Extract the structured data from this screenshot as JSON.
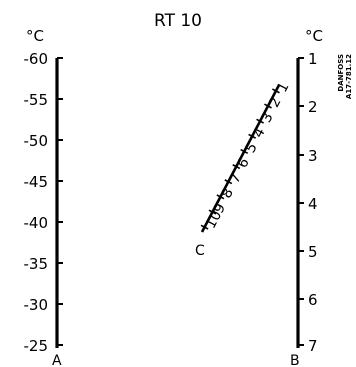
{
  "title": "RT 10",
  "brand": {
    "line1": "DANFOSS",
    "line2": "A17-781.12"
  },
  "axes": {
    "A": {
      "name": "A",
      "unit": "°C",
      "ticks": [
        "-60",
        "-55",
        "-50",
        "-45",
        "-40",
        "-35",
        "-30",
        "-25"
      ]
    },
    "B": {
      "name": "B",
      "unit": "°C",
      "ticks": [
        "1",
        "2",
        "3",
        "4",
        "5",
        "6",
        "7"
      ]
    },
    "C": {
      "name": "C",
      "ticks": [
        "1",
        "2",
        "3",
        "4",
        "5",
        "6",
        "7",
        "8",
        "9",
        "10"
      ]
    }
  },
  "colors": {
    "ink": "#000000",
    "background": "#ffffff"
  }
}
